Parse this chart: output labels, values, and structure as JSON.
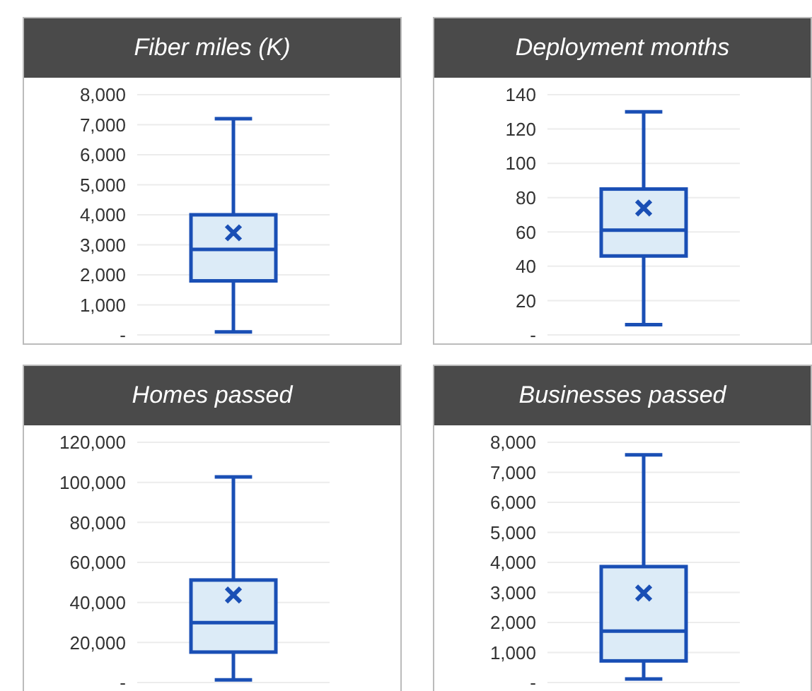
{
  "chart_data": [
    {
      "type": "box",
      "title": "Fiber miles (K)",
      "categories": [
        null
      ],
      "color": "#1a4fb5",
      "boxes": [
        {
          "low": 100,
          "q1": 1800,
          "median": 2850,
          "q3": 4000,
          "high": 7200,
          "mean": 3400
        }
      ],
      "ylim": [
        0,
        8000
      ],
      "yticks": [
        {
          "value": 0,
          "label": "-"
        },
        {
          "value": 1000,
          "label": "1,000"
        },
        {
          "value": 2000,
          "label": "2,000"
        },
        {
          "value": 3000,
          "label": "3,000"
        },
        {
          "value": 4000,
          "label": "4,000"
        },
        {
          "value": 5000,
          "label": "5,000"
        },
        {
          "value": 6000,
          "label": "6,000"
        },
        {
          "value": 7000,
          "label": "7,000"
        },
        {
          "value": 8000,
          "label": "8,000"
        }
      ],
      "grid": "y",
      "tick_labels": "y"
    },
    {
      "type": "box",
      "title": "Deployment months",
      "categories": [
        null
      ],
      "color": "#1a4fb5",
      "boxes": [
        {
          "low": 6,
          "q1": 46,
          "median": 61,
          "q3": 85,
          "high": 130,
          "mean": 74
        }
      ],
      "ylim": [
        0,
        140
      ],
      "yticks": [
        {
          "value": 0,
          "label": "-"
        },
        20,
        40,
        60,
        80,
        100,
        120,
        140
      ],
      "grid": "y",
      "tick_labels": "y"
    },
    {
      "type": "box",
      "title": "Homes passed",
      "categories": [
        null
      ],
      "color": "#1a4fb5",
      "boxes": [
        {
          "low": 1300,
          "q1": 15200,
          "median": 29900,
          "q3": 51200,
          "high": 102700,
          "mean": 43700
        }
      ],
      "ylim": [
        0,
        120000
      ],
      "yticks": [
        {
          "value": 0,
          "label": "-"
        },
        {
          "value": 20000,
          "label": "20,000"
        },
        {
          "value": 40000,
          "label": "40,000"
        },
        {
          "value": 60000,
          "label": "60,000"
        },
        {
          "value": 80000,
          "label": "80,000"
        },
        {
          "value": 100000,
          "label": "100,000"
        },
        {
          "value": 120000,
          "label": "120,000"
        }
      ],
      "grid": "y",
      "tick_labels": "y"
    },
    {
      "type": "box",
      "title": "Businesses passed",
      "categories": [
        null
      ],
      "color": "#1a4fb5",
      "boxes": [
        {
          "low": 120,
          "q1": 720,
          "median": 1710,
          "q3": 3860,
          "high": 7580,
          "mean": 2980
        }
      ],
      "ylim": [
        0,
        8000
      ],
      "yticks": [
        {
          "value": 0,
          "label": "-"
        },
        {
          "value": 1000,
          "label": "1,000"
        },
        {
          "value": 2000,
          "label": "2,000"
        },
        {
          "value": 3000,
          "label": "3,000"
        },
        {
          "value": 4000,
          "label": "4,000"
        },
        {
          "value": 5000,
          "label": "5,000"
        },
        {
          "value": 6000,
          "label": "6,000"
        },
        {
          "value": 7000,
          "label": "7,000"
        },
        {
          "value": 8000,
          "label": "8,000"
        }
      ],
      "grid": "y",
      "tick_labels": "y"
    }
  ]
}
